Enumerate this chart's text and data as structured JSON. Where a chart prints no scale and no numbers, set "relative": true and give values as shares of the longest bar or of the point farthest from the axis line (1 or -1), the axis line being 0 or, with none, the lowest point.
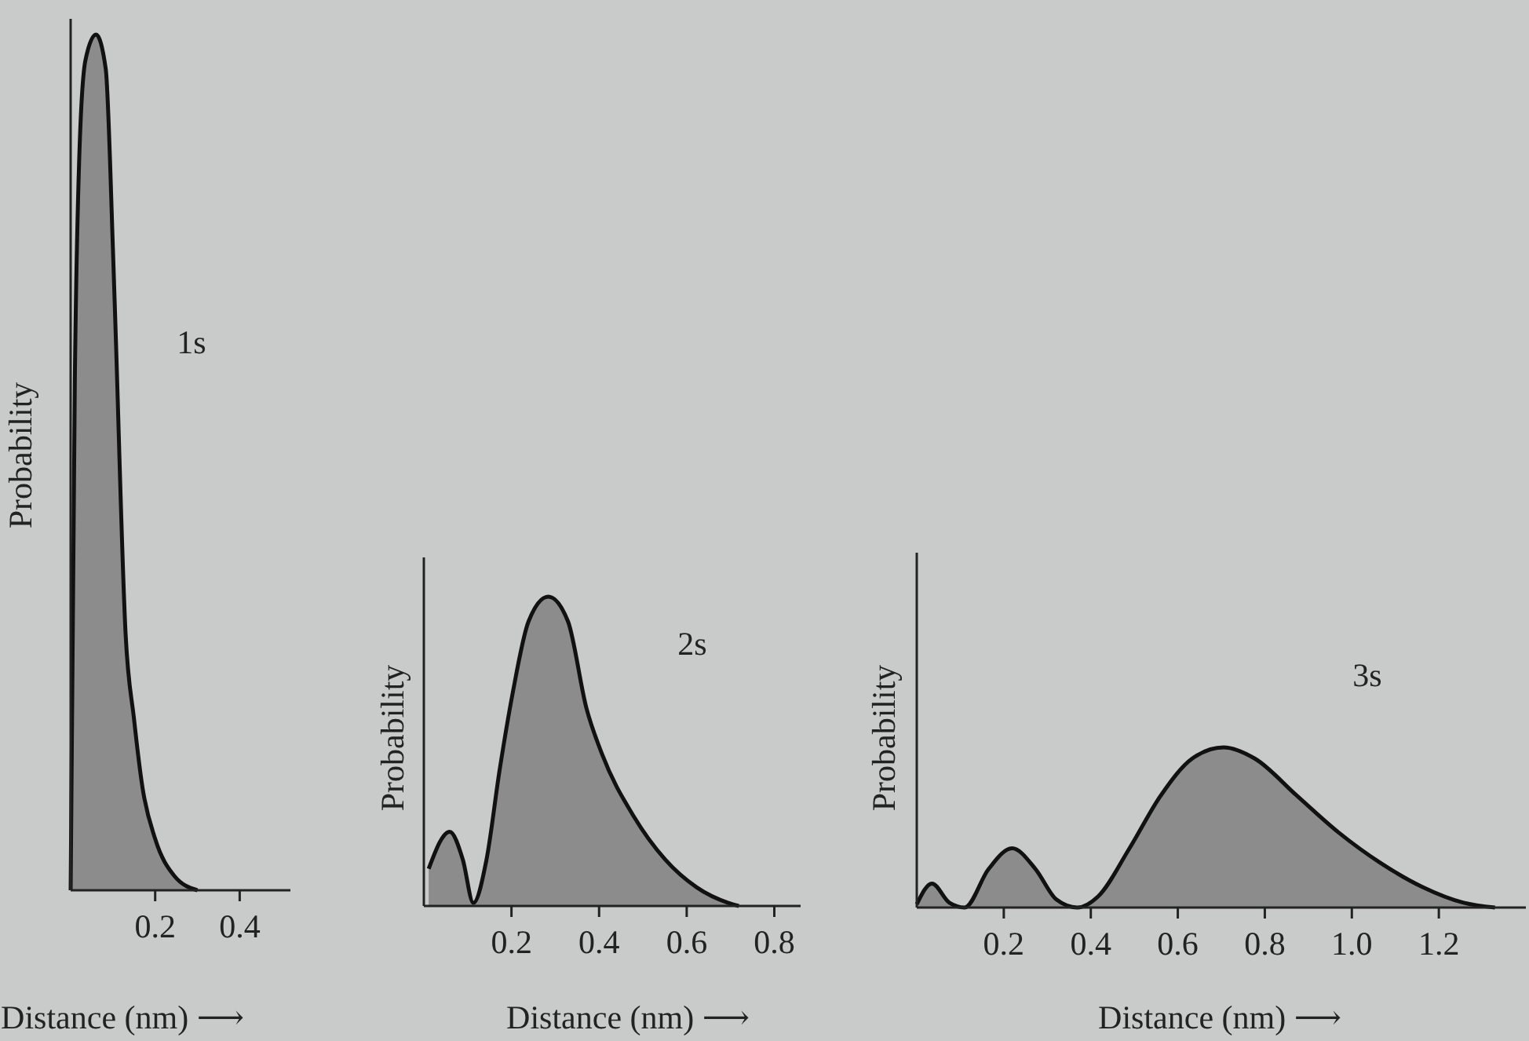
{
  "chart_data": [
    {
      "type": "area",
      "relative": true,
      "ylabel": "Probability",
      "xlabel": "Distance (nm) ⟶",
      "annotations": [
        "1s"
      ],
      "tick_labels": "x",
      "xlim": [
        0,
        0.52
      ],
      "xticks": [
        0.2,
        0.4
      ],
      "x": [
        0,
        0.01,
        0.02,
        0.035,
        0.06,
        0.083,
        0.1,
        0.106,
        0.13,
        0.15,
        0.17,
        0.2,
        0.245,
        0.3
      ],
      "series": [
        {
          "color": "#8c8c8c",
          "values": [
            0,
            0.6,
            0.85,
            0.97,
            1.0,
            0.96,
            0.75,
            0.66,
            0.3,
            0.2,
            0.12,
            0.06,
            0.017,
            0
          ]
        }
      ]
    },
    {
      "type": "area",
      "relative": true,
      "ylabel": "Probability",
      "xlabel": "Distance (nm) ⟶",
      "annotations": [
        "2s"
      ],
      "tick_labels": "x",
      "xlim": [
        0,
        0.86
      ],
      "xticks": [
        0.2,
        0.4,
        0.6,
        0.8
      ],
      "x": [
        0.011,
        0.059,
        0.089,
        0.113,
        0.143,
        0.173,
        0.203,
        0.239,
        0.284,
        0.329,
        0.371,
        0.407,
        0.479,
        0.551,
        0.623,
        0.695,
        0.719
      ],
      "series": [
        {
          "color": "#8c8c8c",
          "values": [
            0.12,
            0.24,
            0.15,
            0.01,
            0.15,
            0.44,
            0.69,
            0.92,
            1.0,
            0.92,
            0.64,
            0.49,
            0.29,
            0.15,
            0.06,
            0.01,
            0
          ]
        }
      ]
    },
    {
      "type": "area",
      "relative": true,
      "ylabel": "Probability",
      "xlabel": "Distance (nm) ⟶",
      "annotations": [
        "3s"
      ],
      "tick_labels": "x",
      "xlim": [
        0,
        1.4
      ],
      "xticks": [
        0.2,
        0.4,
        0.6,
        0.8,
        {
          "value": 1,
          "label": "1.0"
        },
        1.2
      ],
      "x": [
        0,
        0.035,
        0.075,
        0.11,
        0.165,
        0.219,
        0.273,
        0.321,
        0.369,
        0.417,
        0.489,
        0.561,
        0.633,
        0.705,
        0.777,
        0.873,
        0.969,
        1.065,
        1.161,
        1.257,
        1.329
      ],
      "series": [
        {
          "color": "#8c8c8c",
          "values": [
            0.02,
            0.15,
            0.03,
            0,
            0.24,
            0.37,
            0.24,
            0.05,
            0,
            0.07,
            0.37,
            0.7,
            0.93,
            1.0,
            0.93,
            0.7,
            0.47,
            0.28,
            0.13,
            0.03,
            0
          ]
        }
      ]
    }
  ]
}
